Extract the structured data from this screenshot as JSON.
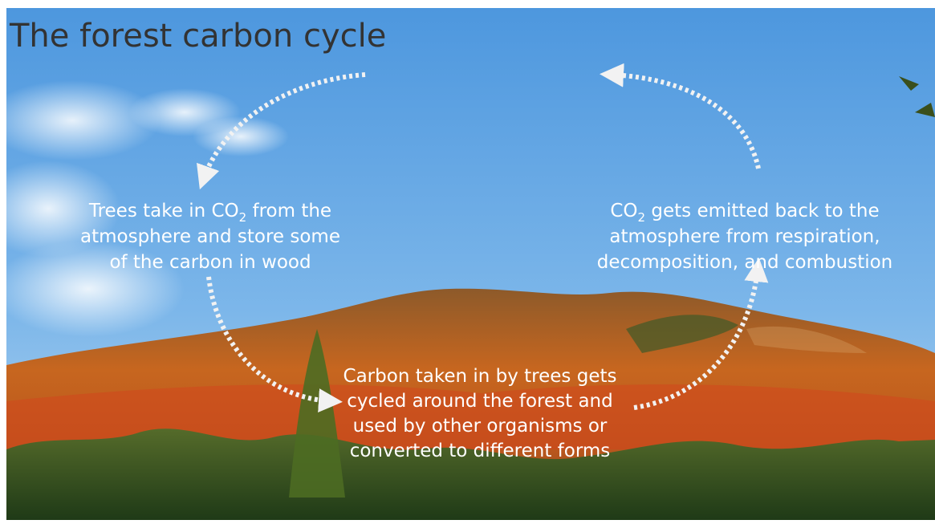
{
  "title": "The forest carbon cycle",
  "labels": [
    {
      "lines": [
        [
          "Trees take in CO",
          "2",
          " from the"
        ],
        [
          "atmosphere and store some"
        ],
        [
          "of the carbon in wood"
        ]
      ]
    },
    {
      "lines": [
        [
          "CO",
          "2",
          " gets emitted back to the"
        ],
        [
          "atmosphere from respiration,"
        ],
        [
          "decomposition, and combustion"
        ]
      ]
    },
    {
      "lines": [
        [
          "Carbon taken in by trees gets"
        ],
        [
          "cycled around the forest and"
        ],
        [
          "used by other organisms or"
        ],
        [
          "converted to different forms"
        ]
      ]
    }
  ]
}
